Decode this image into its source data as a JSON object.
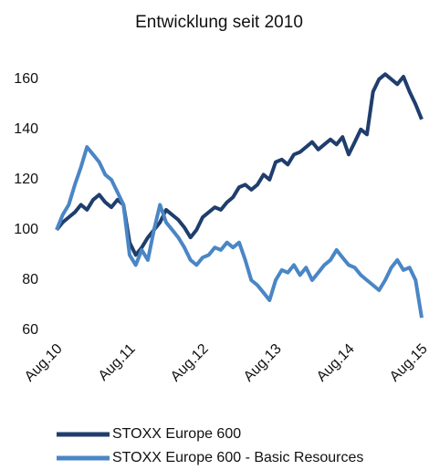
{
  "chart_data": {
    "type": "line",
    "title": "Entwicklung seit 2010",
    "categories": [
      "Aug.10",
      null,
      null,
      null,
      null,
      null,
      null,
      null,
      null,
      null,
      null,
      null,
      "Aug.11",
      null,
      null,
      null,
      null,
      null,
      null,
      null,
      null,
      null,
      null,
      null,
      "Aug.12",
      null,
      null,
      null,
      null,
      null,
      null,
      null,
      null,
      null,
      null,
      null,
      "Aug.13",
      null,
      null,
      null,
      null,
      null,
      null,
      null,
      null,
      null,
      null,
      null,
      "Aug.14",
      null,
      null,
      null,
      null,
      null,
      null,
      null,
      null,
      null,
      null,
      null,
      "Aug.15"
    ],
    "series": [
      {
        "name": "STOXX Europe 600",
        "color": "#1f3e6d",
        "values": [
          100,
          103,
          105,
          107,
          110,
          108,
          112,
          114,
          111,
          109,
          112,
          110,
          95,
          90,
          93,
          97,
          100,
          103,
          108,
          106,
          104,
          101,
          97,
          100,
          105,
          107,
          109,
          108,
          111,
          113,
          117,
          118,
          116,
          118,
          122,
          120,
          127,
          128,
          126,
          130,
          131,
          133,
          135,
          132,
          134,
          136,
          134,
          137,
          130,
          135,
          140,
          138,
          155,
          160,
          162,
          160,
          158,
          161,
          155,
          150,
          144
        ]
      },
      {
        "name": "STOXX Europe 600 - Basic Resources",
        "color": "#4a86c5",
        "values": [
          100,
          106,
          110,
          118,
          125,
          133,
          130,
          127,
          122,
          120,
          115,
          110,
          90,
          86,
          92,
          88,
          100,
          110,
          103,
          100,
          97,
          93,
          88,
          86,
          89,
          90,
          93,
          92,
          95,
          93,
          95,
          88,
          80,
          78,
          75,
          72,
          80,
          84,
          83,
          86,
          82,
          85,
          80,
          83,
          86,
          88,
          92,
          89,
          86,
          85,
          82,
          80,
          78,
          76,
          80,
          85,
          88,
          84,
          85,
          80,
          65
        ]
      }
    ],
    "ylim": [
      60,
      165
    ],
    "yticks": [
      60,
      80,
      100,
      120,
      140,
      160
    ],
    "grid": false,
    "legend": "bottom"
  }
}
